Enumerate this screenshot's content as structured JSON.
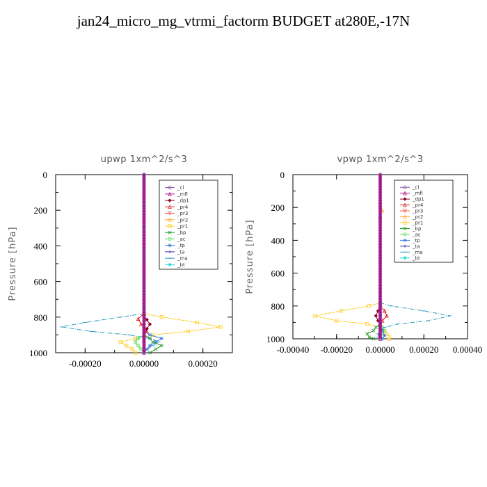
{
  "title": "jan24_micro_mg_vtrmi_factorm  BUDGET at280E,-17N",
  "legend_names": [
    "_cl",
    "_mfl",
    "_dp1",
    "_pr4",
    "_pr3",
    "_pr2",
    "_pr1",
    "_bp",
    "_ac",
    "_tp",
    "_ta",
    "_ma",
    "_bt"
  ],
  "colors": {
    "_cl": "#8855aa",
    "_mfl": "#aa1188",
    "_dp1": "#880022",
    "_pr4": "#dd2222",
    "_pr3": "#ee5544",
    "_pr2": "#ffaa33",
    "_pr1": "#ffcc22",
    "_bp": "#229922",
    "_ac": "#55dd55",
    "_tp": "#3377dd",
    "_ta": "#3333aa",
    "_ma": "#2299bb",
    "_bt": "#22dddd"
  },
  "chart_data": [
    {
      "type": "line",
      "title": "upwp   1xm^2/s^3",
      "ylabel": "Pressure [hPa]",
      "xlim": [
        -0.0003,
        0.0003
      ],
      "ylim": [
        1000,
        0
      ],
      "xticks": [
        -0.0002,
        0,
        0.0002
      ],
      "xtick_labels": [
        "-0.00020",
        "0.00000",
        "0.00020"
      ],
      "yticks": [
        0,
        200,
        400,
        600,
        800,
        1000
      ],
      "ytick_labels": [
        "0",
        "200",
        "400",
        "600",
        "800",
        "1000"
      ],
      "legend_position": "top-right",
      "series": [
        {
          "name": "_pr1",
          "y": [
            780,
            800,
            830,
            855,
            880,
            900,
            920,
            940,
            960,
            980,
            1000
          ],
          "x": [
            0.0,
            6e-05,
            0.00018,
            0.00026,
            0.00015,
            3e-05,
            -3e-05,
            -8e-05,
            -6e-05,
            -4e-05,
            -3e-05
          ]
        },
        {
          "name": "_ma",
          "y": [
            780,
            800,
            830,
            855,
            880,
            900,
            920,
            940,
            960,
            980,
            1000
          ],
          "x": [
            0.0,
            -8e-05,
            -0.0002,
            -0.00028,
            -0.00018,
            -5e-05,
            2e-05,
            5e-05,
            3e-05,
            1e-05,
            0.0
          ]
        },
        {
          "name": "_tp",
          "y": [
            880,
            900,
            920,
            940,
            960,
            980,
            1000
          ],
          "x": [
            0.0,
            2e-05,
            6e-05,
            4e-05,
            2e-05,
            1e-05,
            0.0
          ]
        },
        {
          "name": "_bp",
          "y": [
            900,
            920,
            940,
            960,
            980,
            1000
          ],
          "x": [
            0.0,
            2e-05,
            3e-05,
            6e-05,
            4e-05,
            2e-05
          ]
        },
        {
          "name": "_ac",
          "y": [
            900,
            920,
            940,
            960,
            980,
            1000
          ],
          "x": [
            0.0,
            -2e-05,
            -3e-05,
            -2e-05,
            -1e-05,
            0.0
          ]
        },
        {
          "name": "_pr4",
          "y": [
            780,
            810,
            840,
            860,
            880,
            900,
            920
          ],
          "x": [
            0.0,
            -2e-05,
            -1e-05,
            0.0,
            1e-05,
            0.0,
            0.0
          ]
        },
        {
          "name": "_dp1",
          "y": [
            790,
            815,
            840,
            865,
            890,
            910
          ],
          "x": [
            0.0,
            1e-05,
            2e-05,
            1e-05,
            0.0,
            0.0
          ]
        },
        {
          "name": "_cl",
          "y": [
            0,
            1000
          ],
          "x": [
            0.0,
            0.0
          ]
        },
        {
          "name": "_mfl",
          "y": [
            0,
            1000
          ],
          "x": [
            0.0,
            0.0
          ]
        }
      ]
    },
    {
      "type": "line",
      "title": "vpwp   1xm^2/s^3",
      "ylabel": "Pressure [hPa]",
      "xlim": [
        -0.0004,
        0.0004
      ],
      "ylim": [
        1000,
        0
      ],
      "xticks": [
        -0.0004,
        -0.0002,
        0,
        0.0002,
        0.0004
      ],
      "xtick_labels": [
        "-0.00040",
        "-0.00020",
        "0.00000",
        "0.00020",
        "0.00040"
      ],
      "yticks": [
        0,
        200,
        400,
        600,
        800,
        1000
      ],
      "ytick_labels": [
        "0",
        "200",
        "400",
        "600",
        "800",
        "1000"
      ],
      "legend_position": "top-right",
      "series": [
        {
          "name": "_pr1",
          "y": [
            780,
            800,
            830,
            860,
            890,
            910,
            930,
            950,
            970,
            990,
            1000
          ],
          "x": [
            0.0,
            -5e-05,
            -0.00018,
            -0.0003,
            -0.0002,
            -6e-05,
            0.0,
            2e-05,
            3e-05,
            4e-05,
            4e-05
          ]
        },
        {
          "name": "_ma",
          "y": [
            780,
            800,
            830,
            860,
            890,
            910,
            930,
            950,
            970,
            990,
            1000
          ],
          "x": [
            0.0,
            5e-05,
            0.0002,
            0.00032,
            0.00022,
            8e-05,
            2e-05,
            0.0,
            -1e-05,
            -1e-05,
            0.0
          ]
        },
        {
          "name": "_pr2",
          "y": [
            160,
            220,
            260
          ],
          "x": [
            0.0,
            1e-05,
            0.0
          ]
        },
        {
          "name": "_bp",
          "y": [
            910,
            930,
            950,
            970,
            990,
            1000
          ],
          "x": [
            0.0,
            -2e-05,
            -3e-05,
            -6e-05,
            -5e-05,
            -3e-05
          ]
        },
        {
          "name": "_ac",
          "y": [
            910,
            930,
            950,
            970,
            990,
            1000
          ],
          "x": [
            0.0,
            1e-05,
            2e-05,
            1e-05,
            0.0,
            0.0
          ]
        },
        {
          "name": "_tp",
          "y": [
            920,
            950,
            980,
            1000
          ],
          "x": [
            0.0,
            1e-05,
            2e-05,
            1e-05
          ]
        },
        {
          "name": "_pr4",
          "y": [
            800,
            830,
            860,
            890,
            910
          ],
          "x": [
            0.0,
            2e-05,
            3e-05,
            1e-05,
            0.0
          ]
        },
        {
          "name": "_dp1",
          "y": [
            800,
            830,
            860,
            890,
            910
          ],
          "x": [
            0.0,
            -1e-05,
            -2e-05,
            -1e-05,
            0.0
          ]
        },
        {
          "name": "_cl",
          "y": [
            0,
            1000
          ],
          "x": [
            0.0,
            0.0
          ]
        },
        {
          "name": "_mfl",
          "y": [
            0,
            1000
          ],
          "x": [
            0.0,
            0.0
          ]
        }
      ]
    }
  ]
}
